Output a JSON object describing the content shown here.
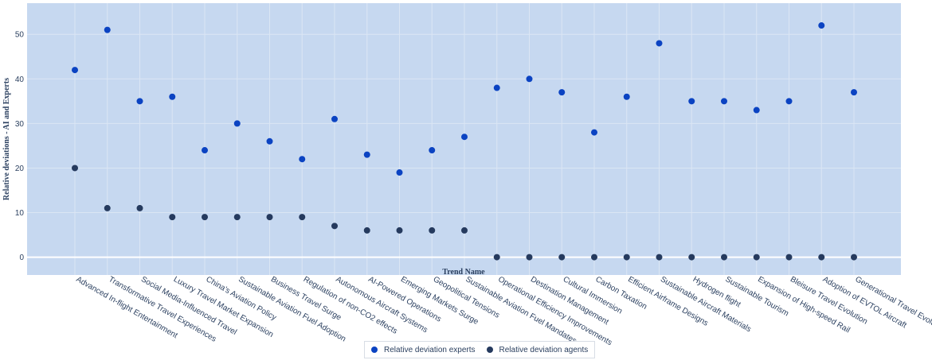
{
  "chart_data": {
    "type": "scatter",
    "xlabel": "Trend Name",
    "ylabel": "Relative deviations - AI and Experts",
    "ylim": [
      -4,
      57
    ],
    "yticks": [
      0,
      10,
      20,
      30,
      40,
      50
    ],
    "grid": true,
    "legend_position": "bottom-center",
    "categories": [
      "Advanced In-flight Entertainment",
      "Transformative Travel Experiences",
      "Social Media-Influenced Travel",
      "Luxury Travel Market Expansion",
      "China's Aviation Policy",
      "Sustainable Aviation Fuel Adoption",
      "Business Travel Surge",
      "Regulation of non-CO2 effects",
      "Autonomous Aircraft Systems",
      "AI-Powered Operations",
      "Emerging Markets Surge",
      "Geopolitical Tensions",
      "Sustainable Aviation Fuel Mandates",
      "Operational Efficiency Improvements",
      "Destination Management",
      "Cultural Immersion",
      "Carbon Taxation",
      "Efficient Airframe Designs",
      "Sustainable Aircraft Materials",
      "Hydrogen flight",
      "Sustainable Tourism",
      "Expansion of High-speed Rail",
      "Bleisure Travel Evolution",
      "Adoption of EVTOL Aircraft",
      "Generational Travel Evolution"
    ],
    "series": [
      {
        "name": "Relative deviation experts",
        "color": "#0b43c2",
        "values": [
          42,
          51,
          35,
          36,
          24,
          30,
          26,
          22,
          31,
          23,
          19,
          24,
          27,
          38,
          40,
          37,
          28,
          36,
          48,
          35,
          35,
          33,
          35,
          52,
          37
        ]
      },
      {
        "name": "Relative deviation agents",
        "color": "#253a5e",
        "values": [
          20,
          11,
          11,
          9,
          9,
          9,
          9,
          9,
          7,
          6,
          6,
          6,
          6,
          0,
          0,
          0,
          0,
          0,
          0,
          0,
          0,
          0,
          0,
          0,
          0
        ]
      }
    ]
  },
  "style": {
    "plot_bg": "#c6d8f0",
    "grid_color": "#dbe6f4",
    "zero_line_color": "#ffffff"
  }
}
